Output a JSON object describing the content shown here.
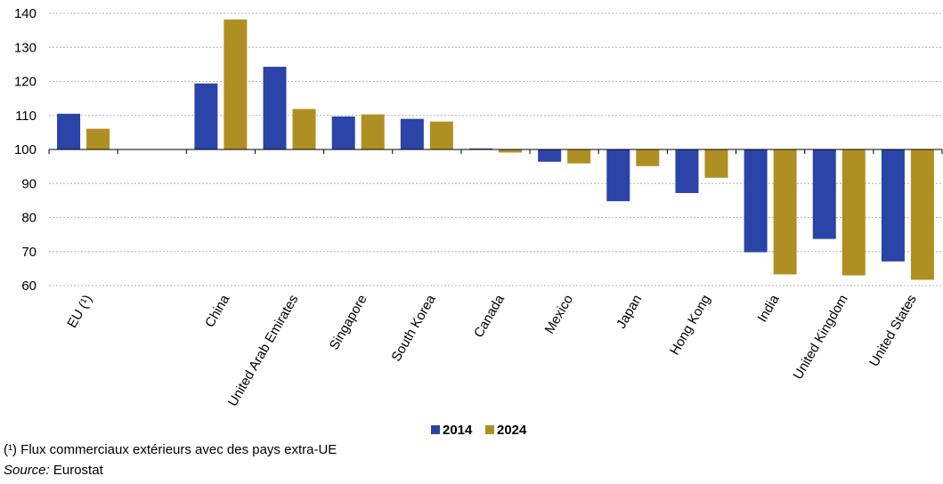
{
  "chart_data": {
    "type": "bar",
    "categories": [
      "EU (¹)",
      "",
      "China",
      "United Arab Emirates",
      "Singapore",
      "South Korea",
      "Canada",
      "Mexico",
      "Japan",
      "Hong Kong",
      "India",
      "United Kingdom",
      "United States"
    ],
    "series": [
      {
        "name": "2014",
        "color": "#2a44a8",
        "values": [
          110.5,
          null,
          119.4,
          124.3,
          109.7,
          109.0,
          100.3,
          96.4,
          84.8,
          87.2,
          69.8,
          73.7,
          67.1
        ]
      },
      {
        "name": "2024",
        "color": "#b08f22",
        "values": [
          106.1,
          null,
          138.2,
          111.9,
          110.3,
          108.2,
          99.1,
          95.9,
          95.1,
          91.7,
          63.3,
          63.0,
          61.7
        ]
      }
    ],
    "baseline": 100,
    "ylim": [
      60,
      140
    ],
    "yticks": [
      60,
      70,
      80,
      90,
      100,
      110,
      120,
      130,
      140
    ],
    "grid": true,
    "legend_position": "bottom-center"
  },
  "footnote": "(¹) Flux commerciaux extérieurs avec des pays extra-UE",
  "source": {
    "label": "Source:",
    "text": " Eurostat"
  }
}
